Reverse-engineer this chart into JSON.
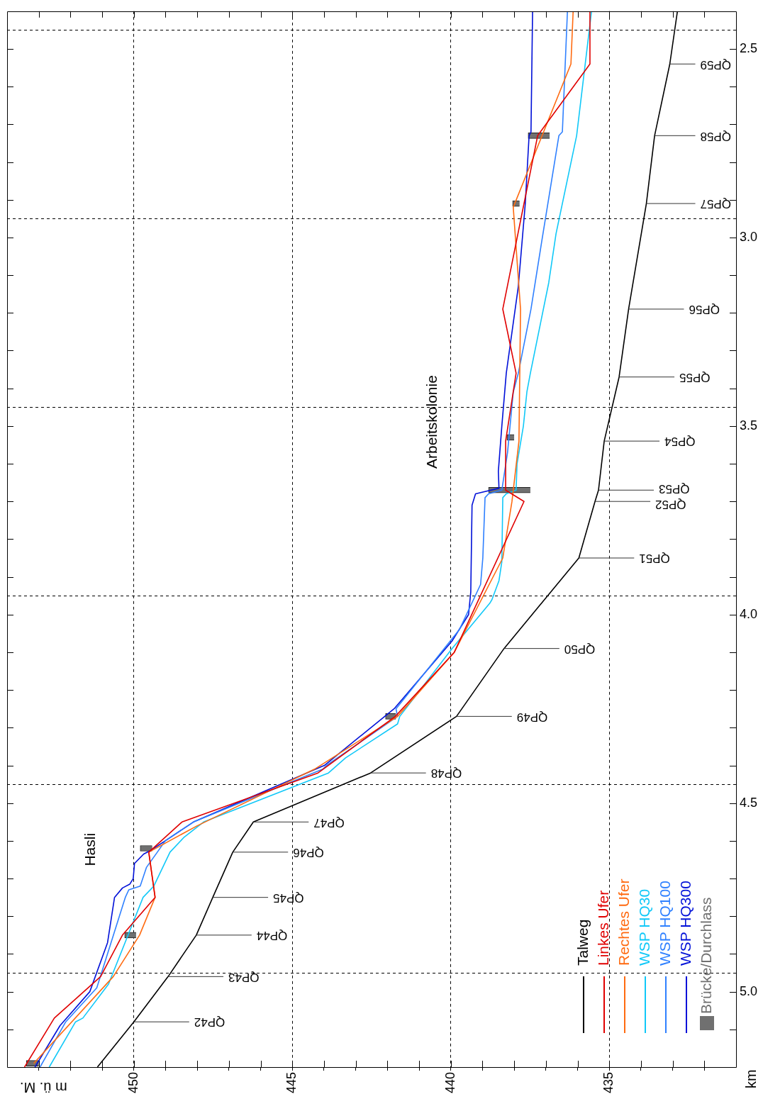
{
  "chart_data": {
    "type": "line",
    "orientation": "horizontal",
    "xlabel": "m ü. M.",
    "ylabel": "km",
    "xlim": [
      454,
      431
    ],
    "ylim": [
      5.2,
      2.4
    ],
    "xticks": [
      {
        "value": 432,
        "label": null
      },
      {
        "value": 433,
        "label": null
      },
      {
        "value": 434,
        "label": null
      },
      435,
      {
        "value": 436,
        "label": null
      },
      {
        "value": 437,
        "label": null
      },
      {
        "value": 438,
        "label": null
      },
      {
        "value": 439,
        "label": null
      },
      440,
      {
        "value": 441,
        "label": null
      },
      {
        "value": 442,
        "label": null
      },
      {
        "value": 443,
        "label": null
      },
      {
        "value": 444,
        "label": null
      },
      445,
      {
        "value": 446,
        "label": null
      },
      {
        "value": 447,
        "label": null
      },
      {
        "value": 448,
        "label": null
      },
      {
        "value": 449,
        "label": null
      },
      450,
      {
        "value": 451,
        "label": null
      },
      {
        "value": 452,
        "label": null
      },
      {
        "value": 453,
        "label": null
      }
    ],
    "yticks": [
      {
        "value": 2.5,
        "label": "2.5"
      },
      {
        "value": 2.6,
        "label": null
      },
      {
        "value": 2.7,
        "label": null
      },
      {
        "value": 2.8,
        "label": null
      },
      {
        "value": 2.9,
        "label": null
      },
      {
        "value": 3,
        "label": "3.0"
      },
      {
        "value": 3.1,
        "label": null
      },
      {
        "value": 3.2,
        "label": null
      },
      {
        "value": 3.3,
        "label": null
      },
      {
        "value": 3.4,
        "label": null
      },
      {
        "value": 3.5,
        "label": "3.5"
      },
      {
        "value": 3.6,
        "label": null
      },
      {
        "value": 3.7,
        "label": null
      },
      {
        "value": 3.8,
        "label": null
      },
      {
        "value": 3.9,
        "label": null
      },
      {
        "value": 4,
        "label": "4.0"
      },
      {
        "value": 4.1,
        "label": null
      },
      {
        "value": 4.2,
        "label": null
      },
      {
        "value": 4.3,
        "label": null
      },
      {
        "value": 4.4,
        "label": null
      },
      {
        "value": 4.5,
        "label": "4.5"
      },
      {
        "value": 4.6,
        "label": null
      },
      {
        "value": 4.7,
        "label": null
      },
      {
        "value": 4.8,
        "label": null
      },
      {
        "value": 4.9,
        "label": null
      },
      {
        "value": 5,
        "label": "5.0"
      },
      {
        "value": 5.1,
        "label": null
      }
    ],
    "grid": true,
    "legend": "bottom right",
    "marker": "none",
    "series": [
      {
        "name": "Talweg",
        "color": "#000000",
        "x": [
          5.2,
          5.08,
          4.96,
          4.85,
          4.75,
          4.63,
          4.55,
          4.42,
          4.27,
          4.09,
          3.85,
          3.7,
          3.67,
          3.54,
          3.37,
          3.19,
          2.91,
          2.73,
          2.54,
          2.4
        ],
        "values": [
          451.15,
          450.0,
          448.92,
          448.03,
          447.51,
          446.88,
          446.23,
          442.53,
          439.82,
          438.32,
          435.96,
          435.45,
          435.34,
          435.16,
          434.69,
          434.39,
          433.83,
          433.57,
          433.09,
          432.85
        ]
      },
      {
        "name": "Linkes Ufer",
        "color": "#e00000",
        "x": [
          5.2,
          5.07,
          4.96,
          4.85,
          4.75,
          4.63,
          4.55,
          4.42,
          4.27,
          4.1,
          3.7,
          3.67,
          3.54,
          3.36,
          3.19,
          2.73,
          2.54,
          2.4
        ],
        "values": [
          453.45,
          452.51,
          451.05,
          450.36,
          449.33,
          449.53,
          448.48,
          444.19,
          441.75,
          439.89,
          437.69,
          438.27,
          438.27,
          437.94,
          438.36,
          437.26,
          435.61,
          435.61
        ]
      },
      {
        "name": "Rechtes Ufer",
        "color": "#ff6a10",
        "x": [
          5.19,
          4.96,
          4.85,
          4.75,
          4.63,
          4.56,
          4.41,
          4.27,
          4.1,
          3.85,
          3.7,
          3.54,
          3.19,
          2.92,
          2.54,
          2.4
        ],
        "values": [
          453.16,
          450.65,
          449.82,
          449.33,
          449.53,
          448.0,
          444.3,
          441.68,
          439.89,
          438.36,
          438.07,
          437.85,
          437.8,
          438.03,
          436.21,
          436.14
        ]
      },
      {
        "name": "WSP HQ30",
        "color": "#10c8f8",
        "x": [
          5.2,
          5.08,
          5.07,
          4.98,
          4.75,
          4.72,
          4.63,
          4.59,
          4.55,
          4.42,
          4.38,
          4.29,
          4.27,
          4.09,
          3.97,
          3.96,
          3.91,
          3.86,
          3.69,
          3.68,
          3.67,
          3.6,
          3.5,
          3.41,
          3.36,
          3.12,
          2.99,
          2.73,
          2.4
        ],
        "values": [
          452.67,
          451.84,
          451.61,
          450.8,
          449.71,
          449.37,
          448.86,
          448.41,
          447.8,
          443.86,
          443.32,
          441.68,
          441.61,
          439.96,
          438.77,
          438.7,
          438.48,
          438.39,
          438.36,
          438.25,
          437.94,
          437.91,
          437.71,
          437.6,
          437.49,
          436.91,
          436.68,
          436.03,
          435.56
        ]
      },
      {
        "name": "WSP HQ100",
        "color": "#2f80ff",
        "x": [
          5.2,
          5.08,
          4.99,
          4.75,
          4.73,
          4.72,
          4.67,
          4.63,
          4.6,
          4.55,
          4.41,
          4.4,
          4.27,
          4.25,
          4.04,
          3.92,
          3.85,
          3.69,
          3.68,
          3.67,
          3.57,
          3.41,
          3.36,
          3.19,
          3.01,
          2.73,
          2.72,
          2.4
        ],
        "values": [
          452.96,
          452.15,
          451.17,
          450.27,
          450.16,
          449.8,
          449.6,
          449.26,
          449.01,
          448.12,
          444.04,
          443.92,
          441.68,
          441.73,
          439.73,
          439.06,
          438.99,
          438.92,
          438.81,
          438.39,
          438.21,
          438.03,
          437.87,
          437.47,
          437.13,
          436.59,
          436.48,
          436.32
        ]
      },
      {
        "name": "WSP HQ300",
        "color": "#0010d8",
        "x": [
          5.2,
          5.09,
          5.0,
          4.87,
          4.75,
          4.725,
          4.715,
          4.7,
          4.66,
          4.635,
          4.625,
          4.6,
          4.55,
          4.4,
          4.25,
          4.07,
          4.0,
          3.94,
          3.71,
          3.68,
          3.675,
          3.665,
          3.62,
          3.5,
          3.36,
          3.13,
          2.91,
          2.73,
          2.72,
          2.4
        ],
        "values": [
          453.12,
          452.33,
          451.39,
          450.83,
          450.61,
          450.36,
          450.13,
          450.02,
          449.98,
          449.69,
          449.46,
          449.01,
          448.12,
          443.99,
          441.79,
          439.96,
          439.44,
          439.37,
          439.33,
          439.22,
          438.99,
          438.48,
          438.5,
          438.39,
          438.25,
          437.87,
          437.65,
          437.53,
          437.47,
          437.42
        ]
      },
      {
        "name": "Brücke/Durchlass",
        "type": "bar",
        "color": "#707070",
        "x": [
          5.19,
          4.85,
          4.62,
          4.27,
          3.67,
          3.53,
          2.91,
          2.73
        ],
        "base": [
          453.0,
          449.93,
          449.42,
          441.73,
          437.49,
          438.0,
          437.83,
          436.88
        ],
        "values": [
          0.39,
          0.36,
          0.38,
          0.33,
          1.32,
          0.23,
          0.22,
          0.68
        ]
      }
    ],
    "annotations": [
      "Hasli",
      "Arbeitskolonie",
      {
        "text": "QP42",
        "x": 450.0,
        "y": 5.08
      },
      {
        "text": "QP43",
        "x": 448.92,
        "y": 4.96
      },
      {
        "text": "QP44",
        "x": 448.03,
        "y": 4.85
      },
      {
        "text": "QP45",
        "x": 447.51,
        "y": 4.75
      },
      {
        "text": "QP46",
        "x": 446.88,
        "y": 4.63
      },
      {
        "text": "QP47",
        "x": 446.23,
        "y": 4.55
      },
      {
        "text": "QP48",
        "x": 442.53,
        "y": 4.42
      },
      {
        "text": "QP49",
        "x": 439.82,
        "y": 4.27
      },
      {
        "text": "QP50",
        "x": 438.32,
        "y": 4.09
      },
      {
        "text": "QP51",
        "x": 435.96,
        "y": 3.85
      },
      {
        "text": "QP52",
        "x": 435.45,
        "y": 3.7
      },
      {
        "text": "QP53",
        "x": 435.34,
        "y": 3.67
      },
      {
        "text": "QP54",
        "x": 435.16,
        "y": 3.54
      },
      {
        "text": "QP55",
        "x": 434.69,
        "y": 3.37
      },
      {
        "text": "QP56",
        "x": 434.39,
        "y": 3.19
      },
      {
        "text": "QP57",
        "x": 433.83,
        "y": 2.91
      },
      {
        "text": "QP58",
        "x": 433.57,
        "y": 2.73
      },
      {
        "text": "QP59",
        "x": 433.09,
        "y": 2.54
      }
    ]
  }
}
